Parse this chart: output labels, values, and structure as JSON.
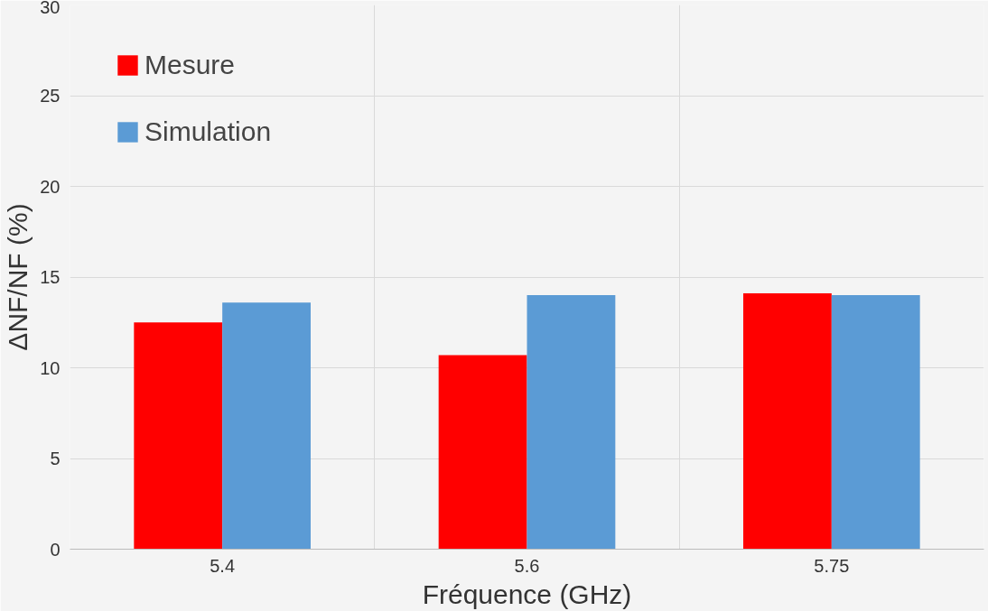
{
  "chart_data": {
    "type": "bar",
    "xlabel": "Fréquence (GHz)",
    "ylabel": "ΔNF/NF (%)",
    "categories": [
      "5.4",
      "5.6",
      "5.75"
    ],
    "series": [
      {
        "name": "Mesure",
        "color": "#ff0000",
        "values": [
          12.5,
          10.7,
          14.1
        ]
      },
      {
        "name": "Simulation",
        "color": "#5b9bd5",
        "values": [
          13.6,
          14.0,
          14.0
        ]
      }
    ],
    "ylim": [
      0,
      30
    ],
    "yticks": [
      0,
      5,
      10,
      15,
      20,
      25,
      30
    ],
    "grid": true,
    "legend": "top left"
  }
}
